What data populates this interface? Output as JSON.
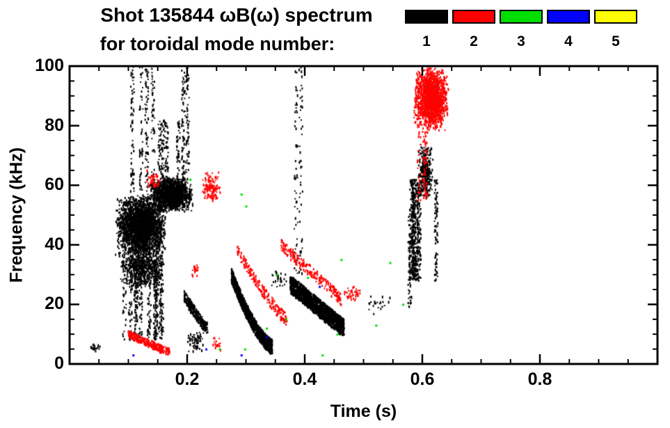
{
  "title": {
    "line1": "Shot 135844 ωB(ω) spectrum",
    "line2": "for toroidal mode number:"
  },
  "legend": {
    "modes": [
      {
        "label": "1",
        "color": "#000000"
      },
      {
        "label": "2",
        "color": "#ff0000"
      },
      {
        "label": "3",
        "color": "#00dd00"
      },
      {
        "label": "4",
        "color": "#0000ff"
      },
      {
        "label": "5",
        "color": "#ffff00"
      }
    ]
  },
  "chart_data": {
    "type": "scatter",
    "title": "Shot 135844 ωB(ω) spectrum for toroidal mode number: 1 2 3 4 5",
    "xlabel": "Time (s)",
    "ylabel": "Frequency (kHz)",
    "xlim": [
      0,
      1.0
    ],
    "ylim": [
      0,
      100
    ],
    "xticks": [
      0.2,
      0.4,
      0.6,
      0.8
    ],
    "xtick_labels": [
      "0.2",
      "0.4",
      "0.6",
      "0.8"
    ],
    "yticks": [
      0,
      20,
      40,
      60,
      80,
      100
    ],
    "x_minor_step": 0.05,
    "y_minor_step": 5,
    "grid": false,
    "legend_position": "top-right",
    "series": [
      {
        "name": "n=1",
        "color": "#000000",
        "clusters": [
          {
            "shape": "blob",
            "t": [
              0.03,
              0.055
            ],
            "f": [
              4,
              7
            ],
            "n": 22
          },
          {
            "shape": "blob",
            "t": [
              0.078,
              0.165
            ],
            "f": [
              36,
              57
            ],
            "n": 2600
          },
          {
            "shape": "blob",
            "t": [
              0.085,
              0.16
            ],
            "f": [
              25,
              40
            ],
            "n": 650
          },
          {
            "shape": "vstreaks",
            "t": [
              0.092,
              0.168
            ],
            "f": [
              8,
              36
            ],
            "streaks": 12,
            "n": 520
          },
          {
            "shape": "vstreaks",
            "t": [
              0.1,
              0.142
            ],
            "f": [
              58,
              100
            ],
            "streaks": 4,
            "n": 230
          },
          {
            "shape": "blob",
            "t": [
              0.135,
              0.21
            ],
            "f": [
              51,
              63
            ],
            "n": 1500
          },
          {
            "shape": "vstreaks",
            "t": [
              0.152,
              0.185
            ],
            "f": [
              62,
              82
            ],
            "streaks": 4,
            "n": 170
          },
          {
            "shape": "vstreaks",
            "t": [
              0.19,
              0.205
            ],
            "f": [
              62,
              100
            ],
            "streaks": 2,
            "n": 130
          },
          {
            "shape": "chirp",
            "t": [
              0.195,
              0.235
            ],
            "f": [
              12,
              23
            ],
            "n": 300,
            "power": 1.2,
            "spread": 4
          },
          {
            "shape": "blob",
            "t": [
              0.2,
              0.23
            ],
            "f": [
              4,
              11
            ],
            "n": 70
          },
          {
            "shape": "chirp",
            "t": [
              0.275,
              0.345
            ],
            "f": [
              6,
              30
            ],
            "n": 1250,
            "power": 1.5,
            "spread": 5
          },
          {
            "shape": "blob",
            "t": [
              0.34,
              0.372
            ],
            "f": [
              25,
              32
            ],
            "n": 28
          },
          {
            "shape": "vstreaks",
            "t": [
              0.385,
              0.395
            ],
            "f": [
              30,
              100
            ],
            "streaks": 2,
            "n": 100
          },
          {
            "shape": "chirp",
            "t": [
              0.375,
              0.467
            ],
            "f": [
              12,
              27
            ],
            "n": 1700,
            "power": 1.0,
            "spread": 6
          },
          {
            "shape": "blob",
            "t": [
              0.5,
              0.56
            ],
            "f": [
              16,
              24
            ],
            "n": 22
          },
          {
            "shape": "vstreaks",
            "t": [
              0.575,
              0.583
            ],
            "f": [
              18,
              50
            ],
            "streaks": 1,
            "n": 55
          },
          {
            "shape": "vstreaks",
            "t": [
              0.58,
              0.625
            ],
            "f": [
              28,
              62
            ],
            "streaks": 7,
            "n": 600
          },
          {
            "shape": "blob",
            "t": [
              0.593,
              0.618
            ],
            "f": [
              55,
              74
            ],
            "n": 330
          }
        ]
      },
      {
        "name": "n=2",
        "color": "#ff0000",
        "clusters": [
          {
            "shape": "chirp",
            "t": [
              0.1,
              0.17
            ],
            "f": [
              4,
              10
            ],
            "n": 300,
            "power": 1.0,
            "spread": 2.5
          },
          {
            "shape": "blob",
            "t": [
              0.13,
              0.155
            ],
            "f": [
              58,
              66
            ],
            "n": 55
          },
          {
            "shape": "blob",
            "t": [
              0.208,
              0.222
            ],
            "f": [
              29,
              34
            ],
            "n": 18
          },
          {
            "shape": "blob",
            "t": [
              0.225,
              0.258
            ],
            "f": [
              54,
              65
            ],
            "n": 130
          },
          {
            "shape": "blob",
            "t": [
              0.243,
              0.258
            ],
            "f": [
              4,
              9
            ],
            "n": 25
          },
          {
            "shape": "chirp",
            "t": [
              0.285,
              0.37
            ],
            "f": [
              15,
              38
            ],
            "n": 210,
            "power": 1.2,
            "spread": 4
          },
          {
            "shape": "chirp",
            "t": [
              0.36,
              0.462
            ],
            "f": [
              22,
              40
            ],
            "n": 240,
            "power": 1.0,
            "spread": 4
          },
          {
            "shape": "blob",
            "t": [
              0.463,
              0.497
            ],
            "f": [
              21,
              27
            ],
            "n": 40
          },
          {
            "shape": "blob",
            "t": [
              0.585,
              0.645
            ],
            "f": [
              78,
              100
            ],
            "n": 1600
          },
          {
            "shape": "vstreaks",
            "t": [
              0.592,
              0.625
            ],
            "f": [
              55,
              78
            ],
            "streaks": 3,
            "n": 90
          }
        ]
      },
      {
        "name": "n=3",
        "color": "#00dd00",
        "clusters": [
          {
            "shape": "dots",
            "pts": [
              [
                0.205,
                62
              ],
              [
                0.292,
                57
              ],
              [
                0.3,
                53
              ],
              [
                0.255,
                5
              ],
              [
                0.298,
                5
              ],
              [
                0.335,
                12
              ],
              [
                0.352,
                30
              ],
              [
                0.368,
                15
              ],
              [
                0.405,
                29
              ],
              [
                0.43,
                3
              ],
              [
                0.455,
                10
              ],
              [
                0.462,
                35
              ],
              [
                0.521,
                13
              ],
              [
                0.545,
                34
              ],
              [
                0.567,
                20
              ]
            ]
          }
        ]
      },
      {
        "name": "n=4",
        "color": "#0000ff",
        "clusters": [
          {
            "shape": "dots",
            "pts": [
              [
                0.232,
                5
              ],
              [
                0.335,
                9
              ],
              [
                0.425,
                26
              ],
              [
                0.292,
                3
              ],
              [
                0.108,
                3
              ]
            ]
          }
        ]
      },
      {
        "name": "n=5",
        "color": "#ffff00",
        "clusters": [
          {
            "shape": "dots",
            "pts": []
          }
        ]
      }
    ]
  }
}
